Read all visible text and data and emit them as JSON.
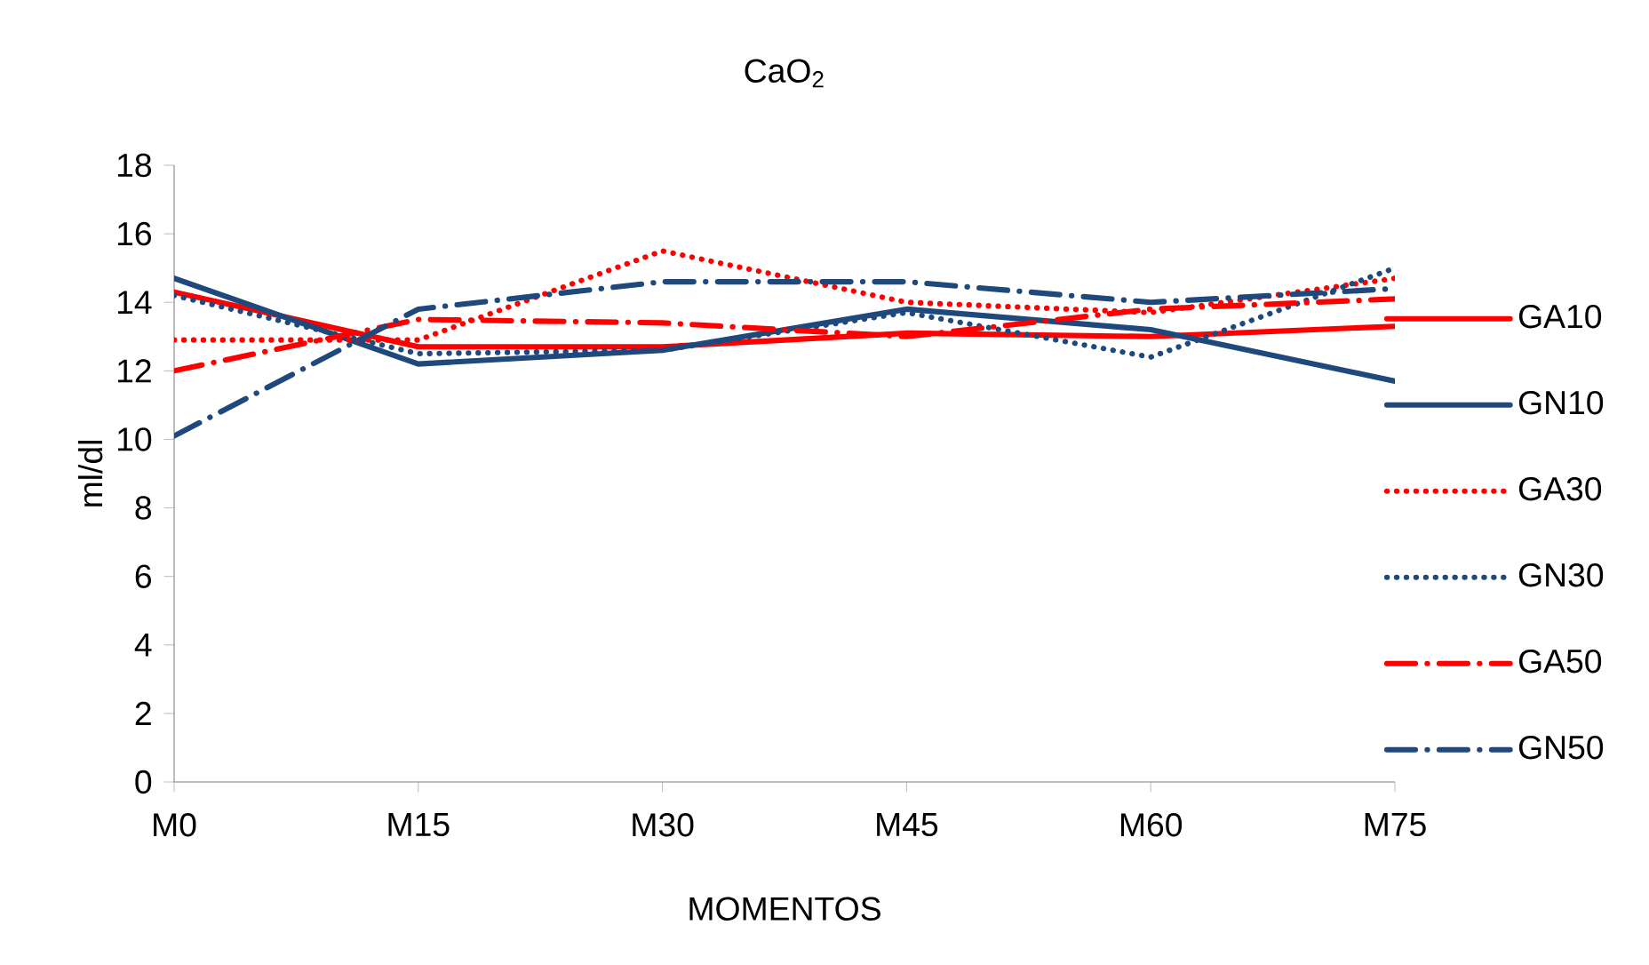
{
  "chart_data": {
    "type": "line",
    "title": "CaO$_{2}$",
    "xlabel": "MOMENTOS",
    "ylabel": "ml/dl",
    "categories": [
      "M0",
      "M15",
      "M30",
      "M45",
      "M60",
      "M75"
    ],
    "ylim": [
      0,
      18
    ],
    "yticks": [
      0,
      2,
      4,
      6,
      8,
      10,
      12,
      14,
      16,
      18
    ],
    "grid": false,
    "legend": "right",
    "marker": "none",
    "series": [
      {
        "name": "GA10",
        "color": "#ff0000",
        "line_style": "solid",
        "values": [
          14.3,
          12.7,
          12.7,
          13.1,
          13.0,
          13.3
        ]
      },
      {
        "name": "GN10",
        "color": "#1f497d",
        "line_style": "solid",
        "values": [
          14.7,
          12.2,
          12.6,
          13.8,
          13.2,
          11.7
        ]
      },
      {
        "name": "GA30",
        "color": "#ff0000",
        "line_style": "dotted",
        "values": [
          12.9,
          12.9,
          15.5,
          14.0,
          13.7,
          14.7
        ]
      },
      {
        "name": "GN30",
        "color": "#1f497d",
        "line_style": "dotted",
        "values": [
          14.2,
          12.5,
          12.6,
          13.7,
          12.4,
          15.0
        ]
      },
      {
        "name": "GA50",
        "color": "#ff0000",
        "line_style": "dashdot",
        "values": [
          12.0,
          13.5,
          13.4,
          13.0,
          13.8,
          14.1
        ]
      },
      {
        "name": "GN50",
        "color": "#1f497d",
        "line_style": "dashdot",
        "values": [
          10.1,
          13.8,
          14.6,
          14.6,
          14.0,
          14.4
        ]
      }
    ]
  }
}
